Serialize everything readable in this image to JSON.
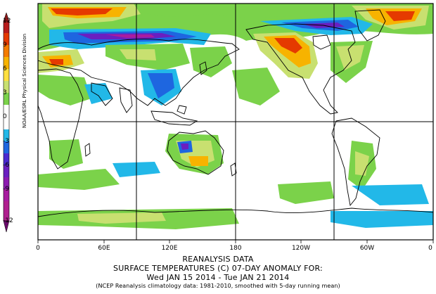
{
  "map": {
    "credit": "NOAA/ESRL Physical Sciences Division",
    "colorbar": {
      "ticks": [
        "12",
        "9",
        "6",
        "3",
        "0",
        "-3",
        "-6",
        "-9",
        "-12"
      ],
      "colors": [
        "#8b1a1a",
        "#cc2200",
        "#ee5500",
        "#f5a000",
        "#ffe040",
        "#c8e070",
        "#80d050",
        "#ffffff",
        "#ffffff",
        "#20b8e8",
        "#2060e0",
        "#6020c0",
        "#8a1ab0",
        "#b020a0"
      ]
    },
    "x_axis": {
      "ticks": [
        "0",
        "60E",
        "120E",
        "180",
        "120W",
        "60W",
        "0"
      ]
    },
    "caption": {
      "line1": "REANALYSIS DATA",
      "line2": "SURFACE TEMPERATURES (C)   07-DAY ANOMALY FOR:",
      "line3": "Wed JAN 15 2014 - Tue JAN 21 2014",
      "line4": "(NCEP Reanalysis climatology data: 1981-2010, smoothed with 5-day running mean)"
    }
  }
}
